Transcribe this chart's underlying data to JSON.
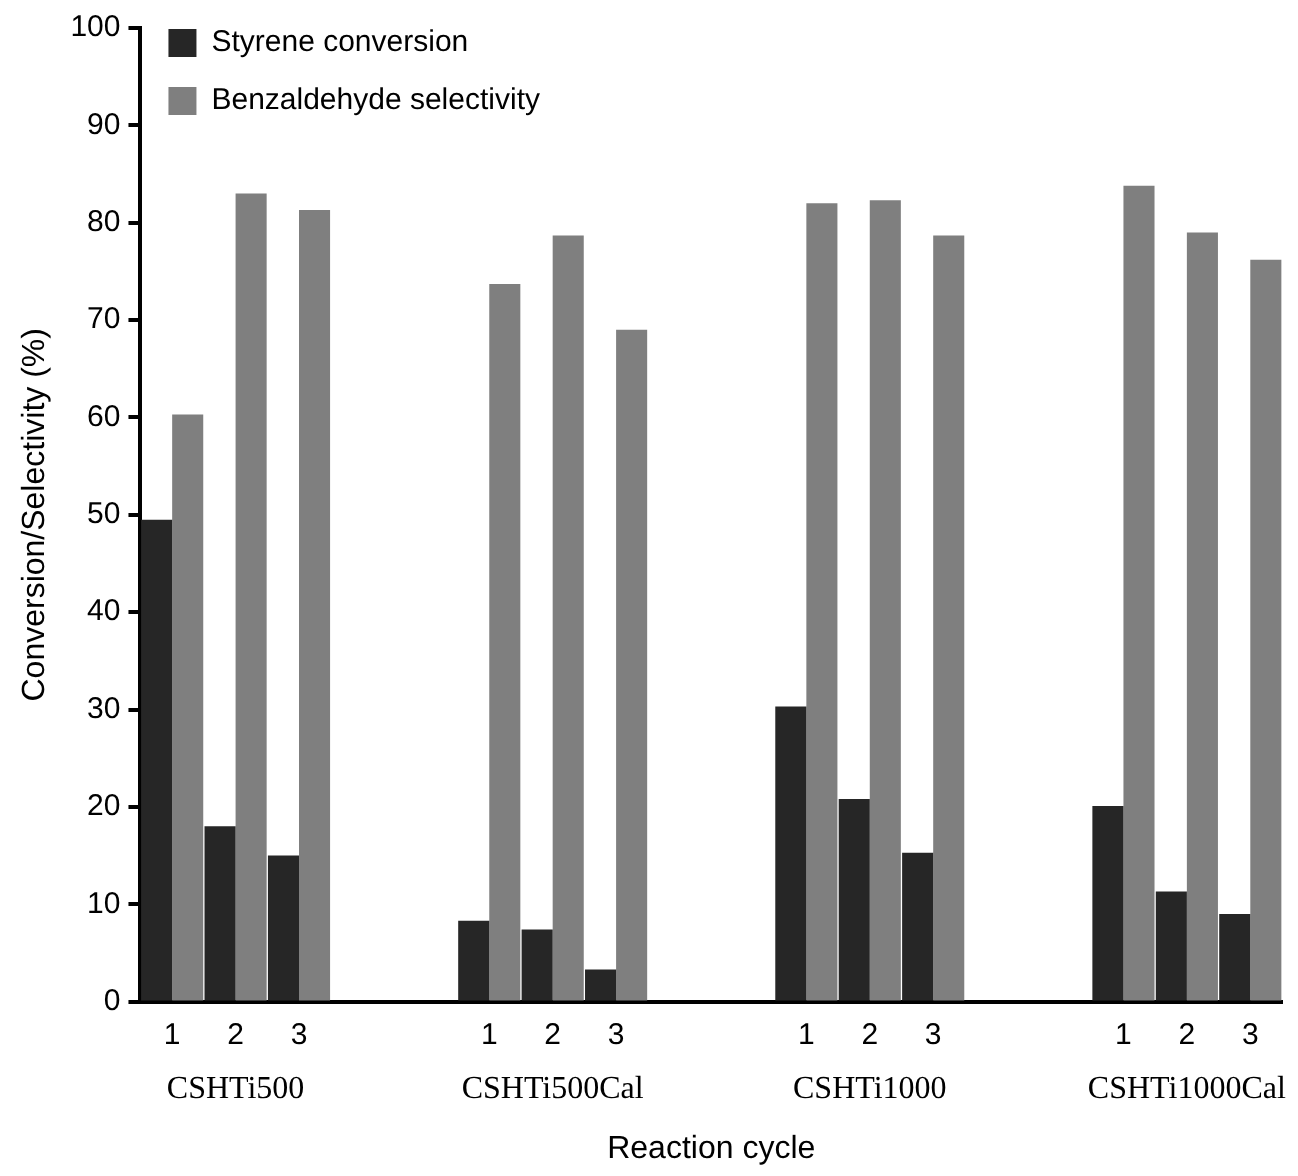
{
  "chart_data": {
    "type": "bar",
    "xlabel": "Reaction cycle",
    "ylabel": "Conversion/Selectivity (%)",
    "categories": [
      "1",
      "2",
      "3",
      null,
      null,
      "1",
      "2",
      "3",
      null,
      null,
      "1",
      "2",
      "3",
      null,
      null,
      "1",
      "2",
      "3"
    ],
    "series": [
      {
        "name": "Styrene conversion",
        "color": "#262626",
        "values": [
          49.5,
          18,
          15,
          null,
          null,
          8.3,
          7.4,
          3.3,
          null,
          null,
          30.3,
          20.8,
          15.3,
          null,
          null,
          20.1,
          11.3,
          9
        ]
      },
      {
        "name": "Benzaldehyde selectivity",
        "color": "#7f7f7f",
        "values": [
          60.3,
          83,
          81.3,
          null,
          null,
          73.7,
          78.7,
          69,
          null,
          null,
          82,
          82.3,
          78.7,
          null,
          null,
          83.8,
          79,
          76.2
        ]
      }
    ],
    "annotations": [
      "CSHTi500",
      "CSHTi500Cal",
      "CSHTi1000",
      "CSHTi1000Cal"
    ],
    "ylim": [
      0,
      100
    ],
    "yticks": [
      0,
      10,
      20,
      30,
      40,
      50,
      60,
      70,
      80,
      90,
      100
    ],
    "grid": false,
    "legend": "top left"
  }
}
